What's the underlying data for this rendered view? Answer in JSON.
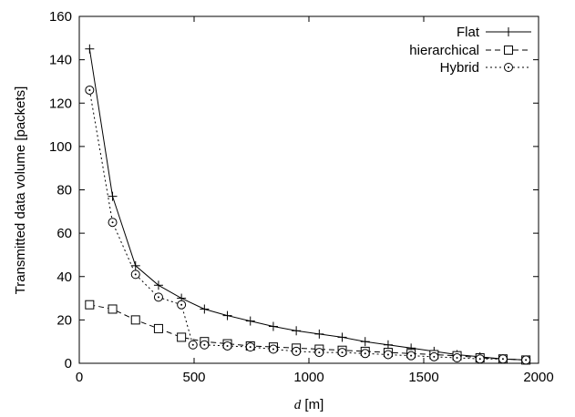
{
  "chart_data": {
    "type": "line",
    "title": "",
    "xlabel_var": "d",
    "xlabel_unit": " [m]",
    "ylabel": "Transmitted data volume [packets]",
    "xlim": [
      0,
      2000
    ],
    "ylim": [
      0,
      160
    ],
    "xticks": [
      "0",
      "500",
      "1000",
      "1500",
      "2000"
    ],
    "yticks": [
      "0",
      "20",
      "40",
      "60",
      "80",
      "100",
      "120",
      "140",
      "160"
    ],
    "grid": false,
    "legend_position": "top-right",
    "series": [
      {
        "name": "Flat",
        "line_style": "solid",
        "marker": "plus",
        "x": [
          45,
          145,
          245,
          345,
          445,
          545,
          645,
          745,
          845,
          945,
          1045,
          1145,
          1245,
          1345,
          1445,
          1545,
          1645,
          1745,
          1845,
          1945
        ],
        "y": [
          145,
          77,
          45,
          36,
          30,
          25,
          22,
          19.5,
          17,
          15,
          13.5,
          12,
          10,
          8.5,
          7,
          5.5,
          4,
          3,
          2,
          1.5
        ]
      },
      {
        "name": "hierarchical",
        "line_style": "dashed",
        "marker": "square",
        "x": [
          45,
          145,
          245,
          345,
          445,
          545,
          645,
          745,
          845,
          945,
          1045,
          1145,
          1245,
          1345,
          1445,
          1545,
          1645,
          1745,
          1845,
          1945
        ],
        "y": [
          27,
          25,
          20,
          16,
          12,
          10,
          9,
          8,
          7.5,
          7,
          6.5,
          6,
          5.5,
          5,
          4.5,
          4,
          3.5,
          2.5,
          2,
          1.5
        ]
      },
      {
        "name": "Hybrid",
        "line_style": "dotted",
        "marker": "circle",
        "x": [
          45,
          145,
          245,
          345,
          445,
          495,
          545,
          645,
          745,
          845,
          945,
          1045,
          1145,
          1245,
          1345,
          1445,
          1545,
          1645,
          1745,
          1845,
          1945
        ],
        "y": [
          126,
          65,
          41,
          30.5,
          27,
          8.5,
          8.5,
          8,
          7.5,
          6.5,
          5.5,
          5,
          5,
          4.5,
          4,
          3.5,
          3,
          2.5,
          2,
          2,
          1.5
        ]
      }
    ]
  }
}
